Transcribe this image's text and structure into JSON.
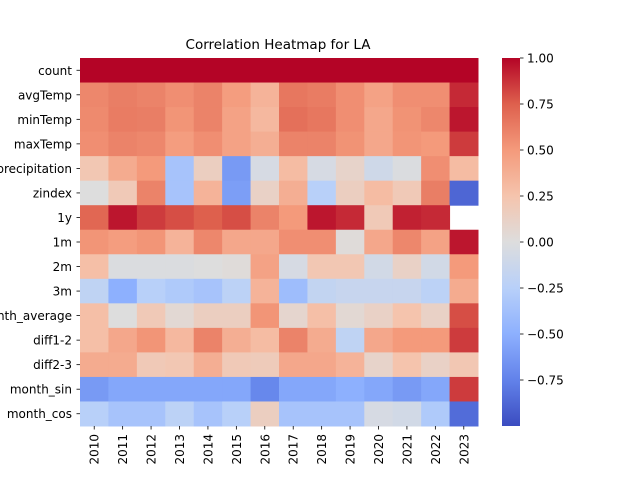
{
  "chart_data": {
    "type": "heatmap",
    "title": "Correlation Heatmap for LA",
    "xlabel": "",
    "ylabel": "",
    "x_categories": [
      "2010",
      "2011",
      "2012",
      "2013",
      "2014",
      "2015",
      "2016",
      "2017",
      "2018",
      "2019",
      "2020",
      "2021",
      "2022",
      "2023"
    ],
    "y_categories": [
      "count",
      "avgTemp",
      "minTemp",
      "maxTemp",
      "precipitation",
      "zindex",
      "1y",
      "1m",
      "2m",
      "3m",
      "month_average",
      "diff1-2",
      "diff2-3",
      "month_sin",
      "month_cos"
    ],
    "values": [
      [
        1.0,
        1.0,
        1.0,
        1.0,
        1.0,
        1.0,
        1.0,
        1.0,
        1.0,
        1.0,
        1.0,
        1.0,
        1.0,
        1.0
      ],
      [
        0.58,
        0.62,
        0.6,
        0.55,
        0.6,
        0.48,
        0.35,
        0.65,
        0.63,
        0.55,
        0.45,
        0.55,
        0.55,
        0.9
      ],
      [
        0.57,
        0.63,
        0.62,
        0.52,
        0.6,
        0.45,
        0.32,
        0.68,
        0.65,
        0.55,
        0.42,
        0.53,
        0.58,
        0.95
      ],
      [
        0.55,
        0.6,
        0.58,
        0.48,
        0.55,
        0.45,
        0.38,
        0.6,
        0.6,
        0.53,
        0.42,
        0.52,
        0.5,
        0.85
      ],
      [
        0.22,
        0.4,
        0.5,
        -0.35,
        0.15,
        -0.62,
        -0.05,
        0.3,
        -0.05,
        0.1,
        -0.1,
        -0.02,
        0.55,
        0.3
      ],
      [
        0.0,
        0.2,
        0.6,
        -0.35,
        0.35,
        -0.6,
        0.12,
        0.38,
        -0.25,
        0.15,
        0.3,
        0.2,
        0.62,
        -0.88
      ],
      [
        0.72,
        0.95,
        0.85,
        0.8,
        0.75,
        0.8,
        0.6,
        0.5,
        0.95,
        0.9,
        0.2,
        0.92,
        0.9,
        null
      ],
      [
        0.52,
        0.48,
        0.52,
        0.35,
        0.58,
        0.42,
        0.42,
        0.55,
        0.55,
        0.02,
        0.42,
        0.58,
        0.45,
        0.95
      ],
      [
        0.28,
        -0.02,
        -0.02,
        -0.02,
        0.0,
        0.02,
        0.45,
        -0.05,
        0.22,
        0.22,
        -0.08,
        0.12,
        -0.08,
        0.5
      ],
      [
        -0.2,
        -0.5,
        -0.25,
        -0.3,
        -0.35,
        -0.22,
        0.35,
        -0.4,
        -0.18,
        -0.15,
        -0.15,
        -0.15,
        -0.22,
        0.4
      ],
      [
        0.28,
        0.0,
        0.2,
        0.05,
        0.15,
        0.15,
        0.52,
        0.08,
        0.28,
        0.05,
        0.12,
        0.25,
        0.12,
        0.8
      ],
      [
        0.28,
        0.42,
        0.52,
        0.32,
        0.6,
        0.38,
        0.3,
        0.6,
        0.4,
        -0.2,
        0.42,
        0.5,
        0.5,
        0.85
      ],
      [
        0.4,
        0.4,
        0.2,
        0.22,
        0.38,
        0.2,
        0.18,
        0.42,
        0.42,
        0.35,
        0.1,
        0.25,
        0.12,
        0.22
      ],
      [
        -0.62,
        -0.55,
        -0.55,
        -0.55,
        -0.55,
        -0.55,
        -0.72,
        -0.55,
        -0.55,
        -0.5,
        -0.55,
        -0.62,
        -0.55,
        0.85
      ],
      [
        -0.25,
        -0.35,
        -0.35,
        -0.22,
        -0.35,
        -0.25,
        0.15,
        -0.35,
        -0.35,
        -0.35,
        -0.05,
        -0.08,
        -0.3,
        -0.85
      ]
    ],
    "colormap": "coolwarm",
    "vmin": -1.0,
    "vmax": 1.0,
    "colorbar_ticks": [
      "1.00",
      "0.75",
      "0.50",
      "0.25",
      "0.00",
      "−0.25",
      "−0.50",
      "−0.75"
    ],
    "colorbar_tick_values": [
      1.0,
      0.75,
      0.5,
      0.25,
      0.0,
      -0.25,
      -0.5,
      -0.75
    ],
    "grid": false,
    "legend": "colorbar-right"
  }
}
